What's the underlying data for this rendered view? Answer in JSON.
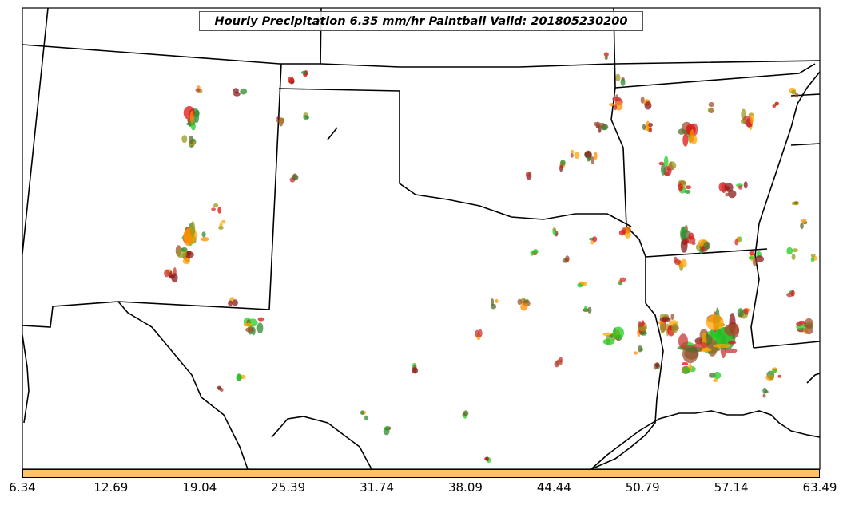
{
  "map": {
    "title": "Hourly Precipitation 6.35 mm/hr Paintball Valid: 201805230200",
    "colorbar": {
      "ticks": [
        "6.34",
        "12.69",
        "19.04",
        "25.39",
        "31.74",
        "38.09",
        "44.44",
        "50.79",
        "57.14",
        "63.49"
      ],
      "color": "#ffc266"
    },
    "member_colors": [
      "#8b1a1a",
      "#e01010",
      "#ff8c00",
      "#ffa500",
      "#2e8b2e",
      "#22cc22",
      "#9a9a20",
      "#a0522d",
      "#556b2f",
      "#cc3333"
    ]
  }
}
